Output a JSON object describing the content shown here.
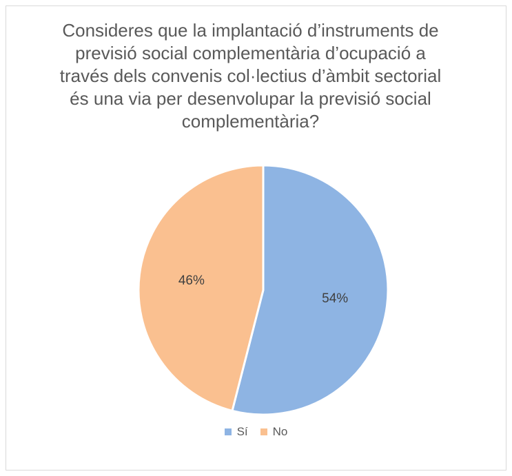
{
  "chart_data": {
    "type": "pie",
    "title_lines": [
      "Consideres que la implantació d’instruments de",
      "previsió social complementària d’ocupació a",
      "través dels convenis col·lectius d’àmbit sectorial",
      "és una via per desenvolupar la previsió social",
      "complementària?"
    ],
    "categories": [
      "Sí",
      "No"
    ],
    "values": [
      54,
      46
    ],
    "data_labels": [
      "54%",
      "46%"
    ],
    "colors": [
      "#8eb4e3",
      "#fac090"
    ],
    "legend_position": "bottom"
  }
}
